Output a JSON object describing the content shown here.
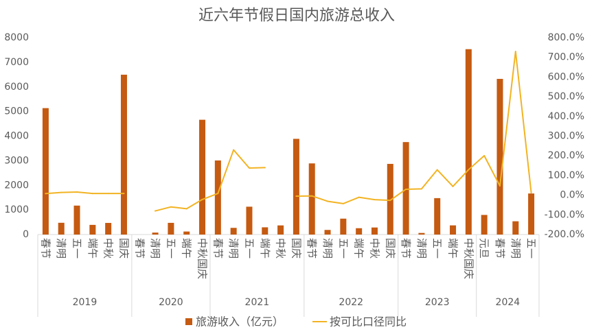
{
  "chart_data": {
    "type": "bar",
    "title": "近六年节假日国内旅游总收入",
    "groups": [
      {
        "year": "2019",
        "categories": [
          "春节",
          "清明",
          "五一",
          "端午",
          "中秋",
          "国庆"
        ]
      },
      {
        "year": "2020",
        "categories": [
          "春节",
          "清明",
          "五一",
          "端午",
          "中秋国庆"
        ]
      },
      {
        "year": "2021",
        "categories": [
          "春节",
          "清明",
          "五一",
          "端午",
          "中秋",
          "国庆"
        ]
      },
      {
        "year": "2022",
        "categories": [
          "春节",
          "清明",
          "五一",
          "端午",
          "中秋",
          "国庆"
        ]
      },
      {
        "year": "2023",
        "categories": [
          "春节",
          "清明",
          "五一",
          "端午",
          "中秋国庆"
        ]
      },
      {
        "year": "2024",
        "categories": [
          "元旦",
          "春节",
          "清明",
          "五一"
        ]
      }
    ],
    "series": [
      {
        "name": "旅游收入（亿元）",
        "type": "bar",
        "axis": "left",
        "color": "#C55A11",
        "values": [
          5139,
          478.6,
          1176.7,
          393.3,
          472.8,
          6497.1,
          null,
          80,
          475.6,
          122.8,
          4665.6,
          3011,
          271.7,
          1132.3,
          294.3,
          371.5,
          3890.6,
          2892,
          187.8,
          646.8,
          258.2,
          286.8,
          2872.1,
          3758.4,
          65,
          1480.6,
          373.1,
          7534.3,
          797.3,
          6326.9,
          539.5,
          1668.9
        ]
      },
      {
        "name": "按可比口径同比",
        "type": "line",
        "axis": "right",
        "color": "#F2B322",
        "values": [
          8.2,
          13.7,
          16.1,
          8.6,
          8.6,
          8.5,
          null,
          -80,
          -59.6,
          -68.8,
          -22,
          9,
          230,
          138,
          140,
          null,
          -4.7,
          -3.9,
          -30.9,
          -42.9,
          -10.7,
          -22.8,
          -26.2,
          30,
          32,
          128.9,
          44.5,
          129.5,
          200.7,
          47.3,
          730,
          12.7
        ]
      }
    ],
    "y_left": {
      "ylim": [
        0,
        8000
      ],
      "tick_labels": [
        "0",
        "1000",
        "2000",
        "3000",
        "4000",
        "5000",
        "6000",
        "7000",
        "8000"
      ]
    },
    "y_right": {
      "ylim": [
        -200,
        800
      ],
      "tick_labels": [
        "-200.0%",
        "-100.0%",
        "0.0%",
        "100.0%",
        "200.0%",
        "300.0%",
        "400.0%",
        "500.0%",
        "600.0%",
        "700.0%",
        "800.0%"
      ]
    },
    "grid": false,
    "legend": "bottom",
    "axis_color": "#D9D9D9"
  }
}
